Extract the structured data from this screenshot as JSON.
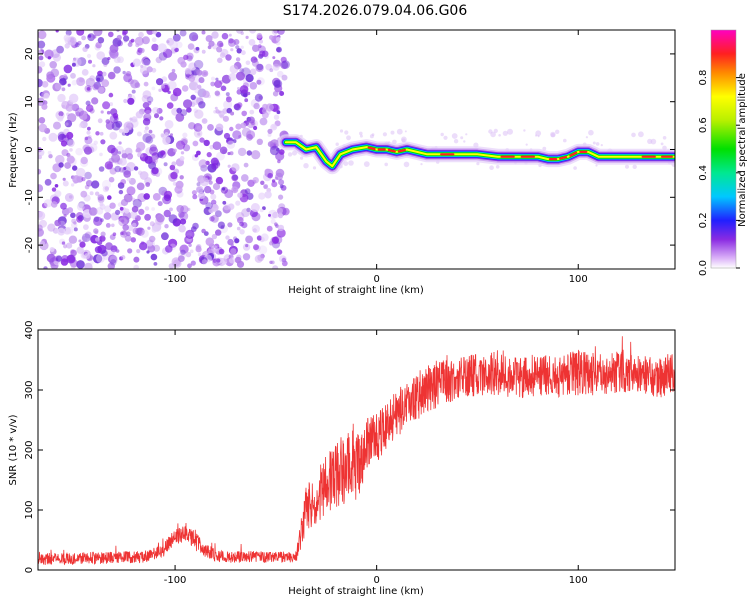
{
  "title": "S174.2026.079.04.06.G06",
  "chart_data": [
    {
      "type": "heatmap",
      "xlabel": "Height of straight line (km)",
      "ylabel": "Frequency (Hz)",
      "xlim": [
        -168,
        148
      ],
      "ylim": [
        -25,
        25
      ],
      "xticks": [
        -100,
        0,
        100
      ],
      "xtick_labels": [
        "-100",
        "0",
        "100"
      ],
      "yticks": [
        -20,
        -10,
        0,
        10,
        20
      ],
      "ytick_labels": [
        "-20",
        "-10",
        "0",
        "10",
        "20"
      ],
      "noise_region_x": [
        -168,
        -45
      ],
      "ridge": {
        "x": [
          -45,
          -40,
          -35,
          -30,
          -25,
          -22,
          -18,
          -12,
          -5,
          0,
          5,
          10,
          15,
          20,
          25,
          30,
          40,
          50,
          60,
          70,
          80,
          85,
          90,
          95,
          100,
          105,
          110,
          120,
          130,
          140,
          148
        ],
        "freq": [
          1.5,
          1.5,
          0,
          0.5,
          -2.5,
          -3.5,
          -1,
          0,
          0.5,
          0,
          0,
          -0.5,
          0,
          -0.5,
          -1,
          -1,
          -1,
          -1,
          -1.5,
          -1.5,
          -1.5,
          -2,
          -2,
          -1.5,
          -0.5,
          -0.5,
          -1.5,
          -1.5,
          -1.5,
          -1.5,
          -1.5
        ]
      },
      "colorbar": {
        "label": "Normalized spectral amplitude",
        "range": [
          0,
          1
        ],
        "ticks": [
          0.0,
          0.2,
          0.4,
          0.6,
          0.8
        ],
        "tick_labels": [
          "0.0",
          "0.2",
          "0.4",
          "0.6",
          "0.8"
        ]
      }
    },
    {
      "type": "line",
      "xlabel": "Height of straight line (km)",
      "ylabel": "SNR (10 * v/v)",
      "xlim": [
        -168,
        148
      ],
      "ylim": [
        0,
        400
      ],
      "xticks": [
        -100,
        0,
        100
      ],
      "xtick_labels": [
        "-100",
        "0",
        "100"
      ],
      "yticks": [
        0,
        100,
        200,
        300,
        400
      ],
      "ytick_labels": [
        "0",
        "100",
        "200",
        "300",
        "400"
      ],
      "color": "#ee3333",
      "series": [
        {
          "name": "SNR",
          "x": [
            -168,
            -140,
            -115,
            -105,
            -100,
            -95,
            -90,
            -85,
            -75,
            -60,
            -50,
            -40,
            -35,
            -30,
            -25,
            -20,
            -15,
            -12,
            -10,
            -5,
            0,
            5,
            10,
            20,
            30,
            40,
            50,
            60,
            70,
            80,
            90,
            100,
            110,
            120,
            130,
            140,
            148
          ],
          "mean": [
            18,
            20,
            22,
            35,
            55,
            60,
            50,
            30,
            22,
            22,
            22,
            22,
            100,
            120,
            140,
            160,
            170,
            200,
            170,
            210,
            220,
            240,
            260,
            290,
            310,
            320,
            325,
            330,
            320,
            325,
            320,
            330,
            325,
            330,
            325,
            320,
            330
          ],
          "noise": [
            10,
            10,
            10,
            12,
            15,
            15,
            15,
            12,
            10,
            10,
            10,
            10,
            40,
            45,
            50,
            55,
            60,
            70,
            60,
            45,
            40,
            40,
            40,
            40,
            40,
            35,
            35,
            40,
            35,
            35,
            35,
            40,
            35,
            35,
            35,
            35,
            35
          ]
        }
      ]
    }
  ]
}
